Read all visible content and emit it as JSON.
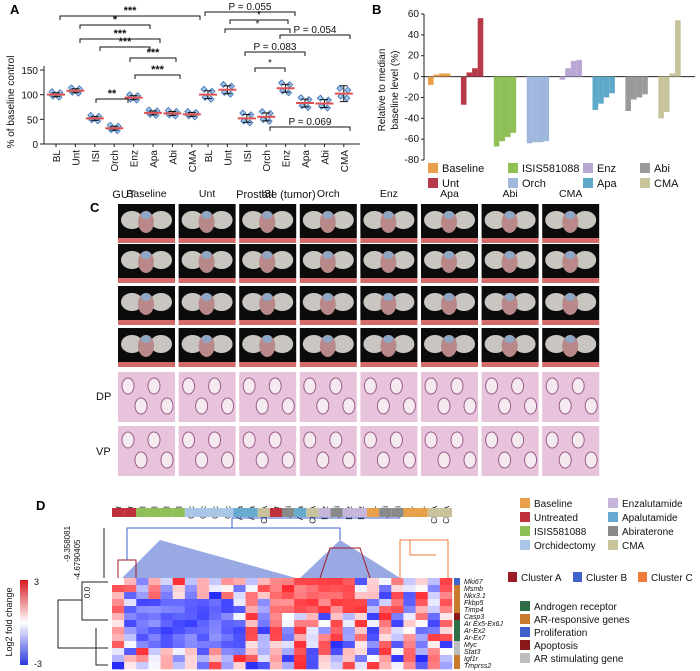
{
  "panel_labels": [
    "A",
    "B",
    "C",
    "D"
  ],
  "chart_data": [
    {
      "panel": "A",
      "type": "scatter",
      "ylabel": "% of baseline control",
      "ylim": [
        0,
        150
      ],
      "yticks": [
        0,
        50,
        100,
        150
      ],
      "groups": [
        {
          "name": "GUT",
          "categories": [
            "BL",
            "Unt",
            "ISI",
            "Orch",
            "Enz",
            "Apa",
            "Abi",
            "CMA"
          ],
          "means": [
            100,
            108,
            52,
            32,
            94,
            63,
            62,
            60
          ]
        },
        {
          "name": "Prostate (tumor)",
          "categories": [
            "BL",
            "Unt",
            "ISI",
            "Orch",
            "Enz",
            "Apa",
            "Abi",
            "CMA"
          ],
          "means": [
            100,
            110,
            52,
            55,
            113,
            83,
            82,
            102
          ]
        }
      ],
      "annotations": [
        "***",
        "*",
        "***",
        "***",
        "**",
        "***",
        "***",
        "P = 0.055",
        "*",
        "*",
        "P = 0.054",
        "P = 0.083",
        "*",
        "P = 0.069"
      ]
    },
    {
      "panel": "B",
      "type": "bar",
      "ylabel": "Relative to median baseline level (%)",
      "ylim": [
        -80,
        60
      ],
      "yticks": [
        60,
        40,
        20,
        0,
        -20,
        -40,
        -60,
        -80
      ],
      "series": [
        {
          "name": "Baseline",
          "color": "#e9a04a",
          "values": [
            -8,
            2,
            3,
            3
          ]
        },
        {
          "name": "Unt",
          "color": "#b73a48",
          "values": [
            -27,
            4,
            8,
            56
          ]
        },
        {
          "name": "ISIS581088",
          "color": "#8fbf57",
          "values": [
            -67,
            -62,
            -58,
            -54
          ]
        },
        {
          "name": "Orch",
          "color": "#9fb7dc",
          "values": [
            -64,
            -63,
            -63,
            -62
          ]
        },
        {
          "name": "Enz",
          "color": "#b8a7d4",
          "values": [
            -3,
            8,
            15,
            16
          ]
        },
        {
          "name": "Apa",
          "color": "#5ea8c9",
          "values": [
            -32,
            -26,
            -20,
            -16
          ]
        },
        {
          "name": "Abi",
          "color": "#9a9a9a",
          "values": [
            -33,
            -22,
            -20,
            -17
          ]
        },
        {
          "name": "CMA",
          "color": "#c7c39a",
          "values": [
            -40,
            -34,
            3,
            54
          ]
        }
      ],
      "legend": [
        "Baseline",
        "ISIS581088",
        "Enz",
        "Abi",
        "Unt",
        "Orch",
        "Apa",
        "CMA"
      ]
    },
    {
      "panel": "D",
      "type": "heatmap",
      "colorbar_label": "Log2 fold change",
      "colorbar_ticks": [
        "3",
        "-3"
      ],
      "dendrogram_ticks": [
        "-9.358081",
        "-4.6790405",
        "0.0"
      ],
      "columns": [
        "Ctr",
        "Ctr",
        "ISI",
        "ISI",
        "ISI",
        "ISI",
        "Orc",
        "Orc",
        "Orc",
        "Orc",
        "Apa",
        "Apa",
        "CMA",
        "Ctr",
        "Abi",
        "Apa",
        "CMA",
        "Enz",
        "Abi",
        "Enz",
        "Enz",
        "BL",
        "Abi",
        "Abi",
        "BL",
        "BL",
        "CMA",
        "CMA"
      ],
      "rows": [
        "Mki67",
        "Msmb",
        "Nkx3.1",
        "Fkbp5",
        "Timp4",
        "Casp3",
        "Ar Ex5-Ex6J",
        "Ar-Ex2",
        "Ar-Ex7",
        "Myc",
        "Stat3",
        "Igf1r",
        "Tmprss2"
      ],
      "treatment_legend": [
        {
          "name": "Baseline",
          "color": "#e9a04a"
        },
        {
          "name": "Enzalutamide",
          "color": "#c9b5dc"
        },
        {
          "name": "Untreated",
          "color": "#c0313e"
        },
        {
          "name": "Apalutamide",
          "color": "#67a9cf"
        },
        {
          "name": "ISIS581088",
          "color": "#8fbf57"
        },
        {
          "name": "Abiraterone",
          "color": "#8a8a8a"
        },
        {
          "name": "Orchidectomy",
          "color": "#a9c6e6"
        },
        {
          "name": "CMA",
          "color": "#c8c39a"
        }
      ],
      "cluster_legend": [
        {
          "name": "Cluster A",
          "color": "#9b1c25"
        },
        {
          "name": "Cluster B",
          "color": "#3f63c9"
        },
        {
          "name": "Cluster C",
          "color": "#f07a3a"
        }
      ],
      "gene_legend": [
        {
          "name": "Androgen receptor",
          "color": "#2f6e46"
        },
        {
          "name": "AR-responsive genes",
          "color": "#c97a2a"
        },
        {
          "name": "Proliferation",
          "color": "#3f63c9"
        },
        {
          "name": "Apoptosis",
          "color": "#8a1a1a"
        },
        {
          "name": "AR stimulating gene",
          "color": "#bdbdbd"
        }
      ]
    }
  ],
  "panel_c": {
    "columns": [
      "Baseline",
      "Unt",
      "ISI",
      "Orch",
      "Enz",
      "Apa",
      "Abi",
      "CMA"
    ],
    "row_labels": [
      "DP",
      "VP"
    ]
  }
}
